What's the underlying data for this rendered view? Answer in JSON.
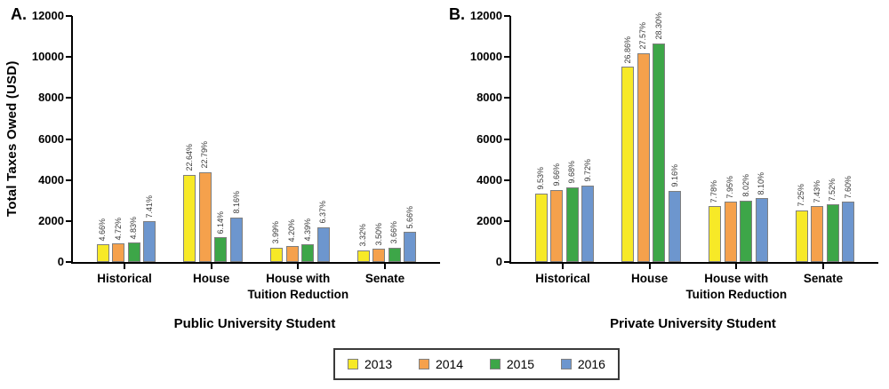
{
  "figure": {
    "legend": {
      "items": [
        {
          "label": "2013",
          "color": "#F7E927"
        },
        {
          "label": "2014",
          "color": "#F5A14C"
        },
        {
          "label": "2015",
          "color": "#3DA648"
        },
        {
          "label": "2016",
          "color": "#6D96CE"
        }
      ]
    },
    "colors": {
      "bar_border": "#7f7f7f",
      "axis": "#000000"
    }
  },
  "chart_data": [
    {
      "type": "bar",
      "panel_label": "A.",
      "title": "Public University Student",
      "ylabel": "Total Taxes Owed  (USD)",
      "ylim": [
        0,
        12000
      ],
      "yticks": [
        0,
        2000,
        4000,
        6000,
        8000,
        10000,
        12000
      ],
      "grid": false,
      "legend_position": "shared-bottom",
      "categories": [
        "Historical",
        "House",
        "House with\nTuition Reduction",
        "Senate"
      ],
      "series": [
        {
          "name": "2013",
          "color": "#F7E927",
          "values": [
            850,
            4250,
            700,
            570
          ],
          "pct_labels": [
            "4.66%",
            "22.64%",
            "3.99%",
            "3.32%"
          ]
        },
        {
          "name": "2014",
          "color": "#F5A14C",
          "values": [
            890,
            4380,
            780,
            630
          ],
          "pct_labels": [
            "4.72%",
            "22.79%",
            "4.20%",
            "3.50%"
          ]
        },
        {
          "name": "2015",
          "color": "#3DA648",
          "values": [
            950,
            1200,
            850,
            700
          ],
          "pct_labels": [
            "4.83%",
            "6.14%",
            "4.39%",
            "3.66%"
          ]
        },
        {
          "name": "2016",
          "color": "#6D96CE",
          "values": [
            1980,
            2170,
            1700,
            1470
          ],
          "pct_labels": [
            "7.41%",
            "8.16%",
            "6.37%",
            "5.66%"
          ]
        }
      ]
    },
    {
      "type": "bar",
      "panel_label": "B.",
      "title": "Private University Student",
      "ylabel": "",
      "ylim": [
        0,
        12000
      ],
      "yticks": [
        0,
        2000,
        4000,
        6000,
        8000,
        10000,
        12000
      ],
      "grid": false,
      "legend_position": "shared-bottom",
      "categories": [
        "Historical",
        "House",
        "House with\nTuition Reduction",
        "Senate"
      ],
      "series": [
        {
          "name": "2013",
          "color": "#F7E927",
          "values": [
            3340,
            9530,
            2720,
            2530
          ],
          "pct_labels": [
            "9.53%",
            "26.86%",
            "7.78%",
            "7.25%"
          ]
        },
        {
          "name": "2014",
          "color": "#F5A14C",
          "values": [
            3530,
            10190,
            2930,
            2720
          ],
          "pct_labels": [
            "9.66%",
            "27.57%",
            "7.95%",
            "7.43%"
          ]
        },
        {
          "name": "2015",
          "color": "#3DA648",
          "values": [
            3650,
            10670,
            3010,
            2810
          ],
          "pct_labels": [
            "9.68%",
            "28.30%",
            "8.02%",
            "7.52%"
          ]
        },
        {
          "name": "2016",
          "color": "#6D96CE",
          "values": [
            3730,
            3480,
            3100,
            2930
          ],
          "pct_labels": [
            "9.72%",
            "9.16%",
            "8.10%",
            "7.60%"
          ]
        }
      ]
    }
  ]
}
